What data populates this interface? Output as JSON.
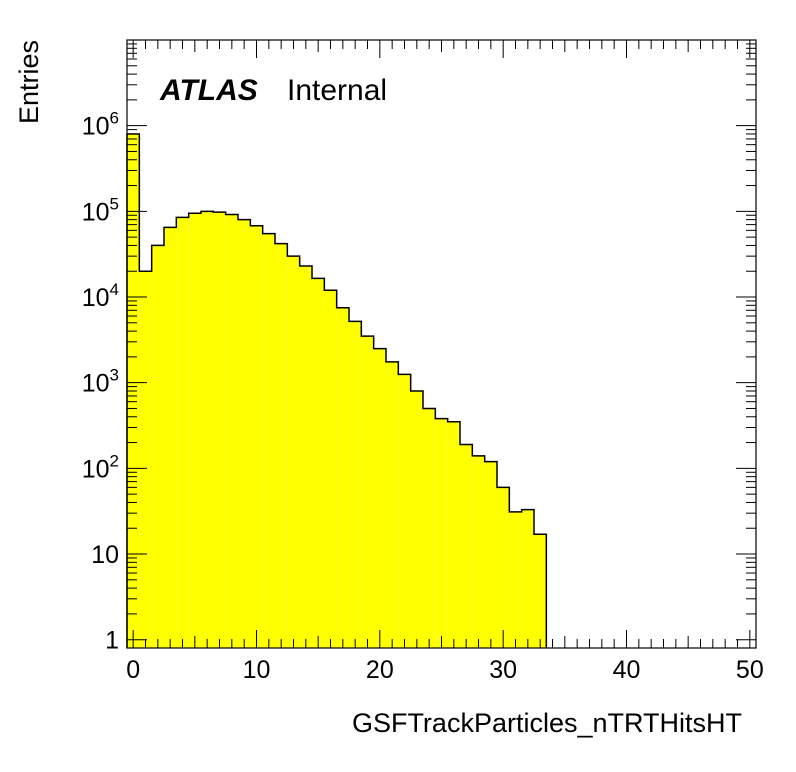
{
  "chart_data": {
    "type": "bar",
    "brand": "ATLAS",
    "status": "Internal",
    "xlabel": "GSFTrackParticles_nTRTHitsHT",
    "ylabel": "Entries",
    "xlim": [
      -0.5,
      50.5
    ],
    "ylim": [
      0.8,
      10000000
    ],
    "yscale": "log",
    "x_ticks": [
      0,
      10,
      20,
      30,
      40,
      50
    ],
    "y_ticks": [
      {
        "value": 1,
        "base": "1",
        "exp": ""
      },
      {
        "value": 10,
        "base": "10",
        "exp": ""
      },
      {
        "value": 100,
        "base": "10",
        "exp": "2"
      },
      {
        "value": 1000,
        "base": "10",
        "exp": "3"
      },
      {
        "value": 10000,
        "base": "10",
        "exp": "4"
      },
      {
        "value": 100000,
        "base": "10",
        "exp": "5"
      },
      {
        "value": 1000000,
        "base": "10",
        "exp": "6"
      }
    ],
    "bin_width": 1,
    "bins": [
      0,
      1,
      2,
      3,
      4,
      5,
      6,
      7,
      8,
      9,
      10,
      11,
      12,
      13,
      14,
      15,
      16,
      17,
      18,
      19,
      20,
      21,
      22,
      23,
      24,
      25,
      26,
      27,
      28,
      29,
      30,
      31,
      32,
      33
    ],
    "values": [
      800000,
      20000,
      40000,
      65000,
      85000,
      95000,
      100000,
      98000,
      92000,
      80000,
      68000,
      55000,
      42000,
      30000,
      23000,
      16500,
      12000,
      7500,
      5200,
      3500,
      2500,
      1750,
      1250,
      800,
      500,
      380,
      350,
      190,
      140,
      120,
      60,
      31,
      33,
      17
    ],
    "fill_color": "#ffff00",
    "edge_color": "#000000",
    "grid": false,
    "legend": "none"
  }
}
